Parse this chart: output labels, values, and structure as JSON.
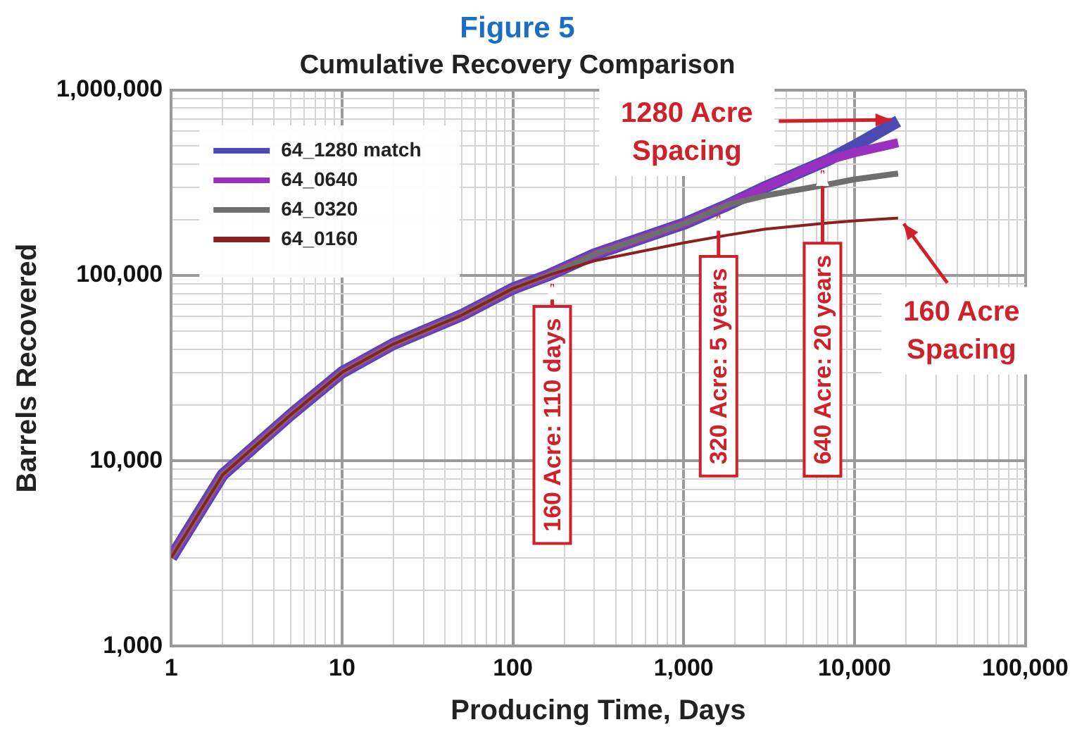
{
  "chart_data": {
    "type": "line",
    "title": "Figure 5",
    "subtitle": "Cumulative Recovery Comparison",
    "xlabel": "Producing Time, Days",
    "ylabel": "Barrels Recovered",
    "log": "xy",
    "grid": true,
    "legend": "top left",
    "marker": "none",
    "line_style": "solid",
    "xlim": [
      1,
      100000
    ],
    "xticks": [
      1,
      10,
      100,
      {
        "value": 1000,
        "label": "1,000"
      },
      {
        "value": 10000,
        "label": "10,000"
      },
      {
        "value": 100000,
        "label": "100,000"
      }
    ],
    "ylim": [
      1000,
      1000000
    ],
    "yticks": [
      {
        "value": 1000,
        "label": "1,000"
      },
      {
        "value": 10000,
        "label": "10,000"
      },
      {
        "value": 100000,
        "label": "100,000"
      },
      {
        "value": 1000000,
        "label": "1,000,000"
      }
    ],
    "series": [
      {
        "name": "64_1280 match",
        "color": "#4a4ab0",
        "x": [
          1,
          2,
          5,
          10,
          20,
          50,
          100,
          160,
          300,
          1000,
          1800,
          3000,
          7000,
          10000,
          18000
        ],
        "values": [
          3000,
          8400,
          17700,
          30000,
          42700,
          61000,
          85000,
          100000,
          130000,
          190000,
          240000,
          300000,
          420000,
          500000,
          680000
        ]
      },
      {
        "name": "64_0640",
        "color": "#9a30c0",
        "x": [
          1,
          2,
          5,
          10,
          20,
          50,
          100,
          160,
          300,
          1000,
          1800,
          3000,
          7000,
          10000,
          18000
        ],
        "values": [
          3000,
          8400,
          17700,
          30000,
          42700,
          61000,
          85000,
          100000,
          130000,
          190000,
          240000,
          300000,
          420000,
          460000,
          520000
        ]
      },
      {
        "name": "64_0320",
        "color": "#6e6e6e",
        "x": [
          1,
          2,
          5,
          10,
          20,
          50,
          100,
          160,
          300,
          1000,
          1800,
          3000,
          7000,
          10000,
          18000
        ],
        "values": [
          3000,
          8400,
          17700,
          30000,
          42700,
          61000,
          85000,
          100000,
          130000,
          190000,
          240000,
          270000,
          310000,
          330000,
          355000
        ]
      },
      {
        "name": "64_0160",
        "color": "#8b2020",
        "x": [
          1,
          2,
          5,
          10,
          20,
          50,
          100,
          160,
          300,
          1000,
          1800,
          3000,
          7000,
          10000,
          18000
        ],
        "values": [
          3000,
          8400,
          17700,
          30000,
          42700,
          61000,
          85000,
          100000,
          120000,
          150000,
          165000,
          178000,
          192000,
          197000,
          204000
        ]
      }
    ],
    "annotations": [
      {
        "text": "1280 Acre Spacing",
        "x": 18000,
        "y": 680000
      },
      {
        "text": "160 Acre Spacing",
        "x": 18000,
        "y": 204000
      },
      {
        "text": "160 Acre: 110 days",
        "x": 170,
        "y": 100000
      },
      {
        "text": "320 Acre: 5 years",
        "x": 1600,
        "y": 235000
      },
      {
        "text": "640 Acre: 20 years",
        "x": 6500,
        "y": 410000
      }
    ]
  }
}
